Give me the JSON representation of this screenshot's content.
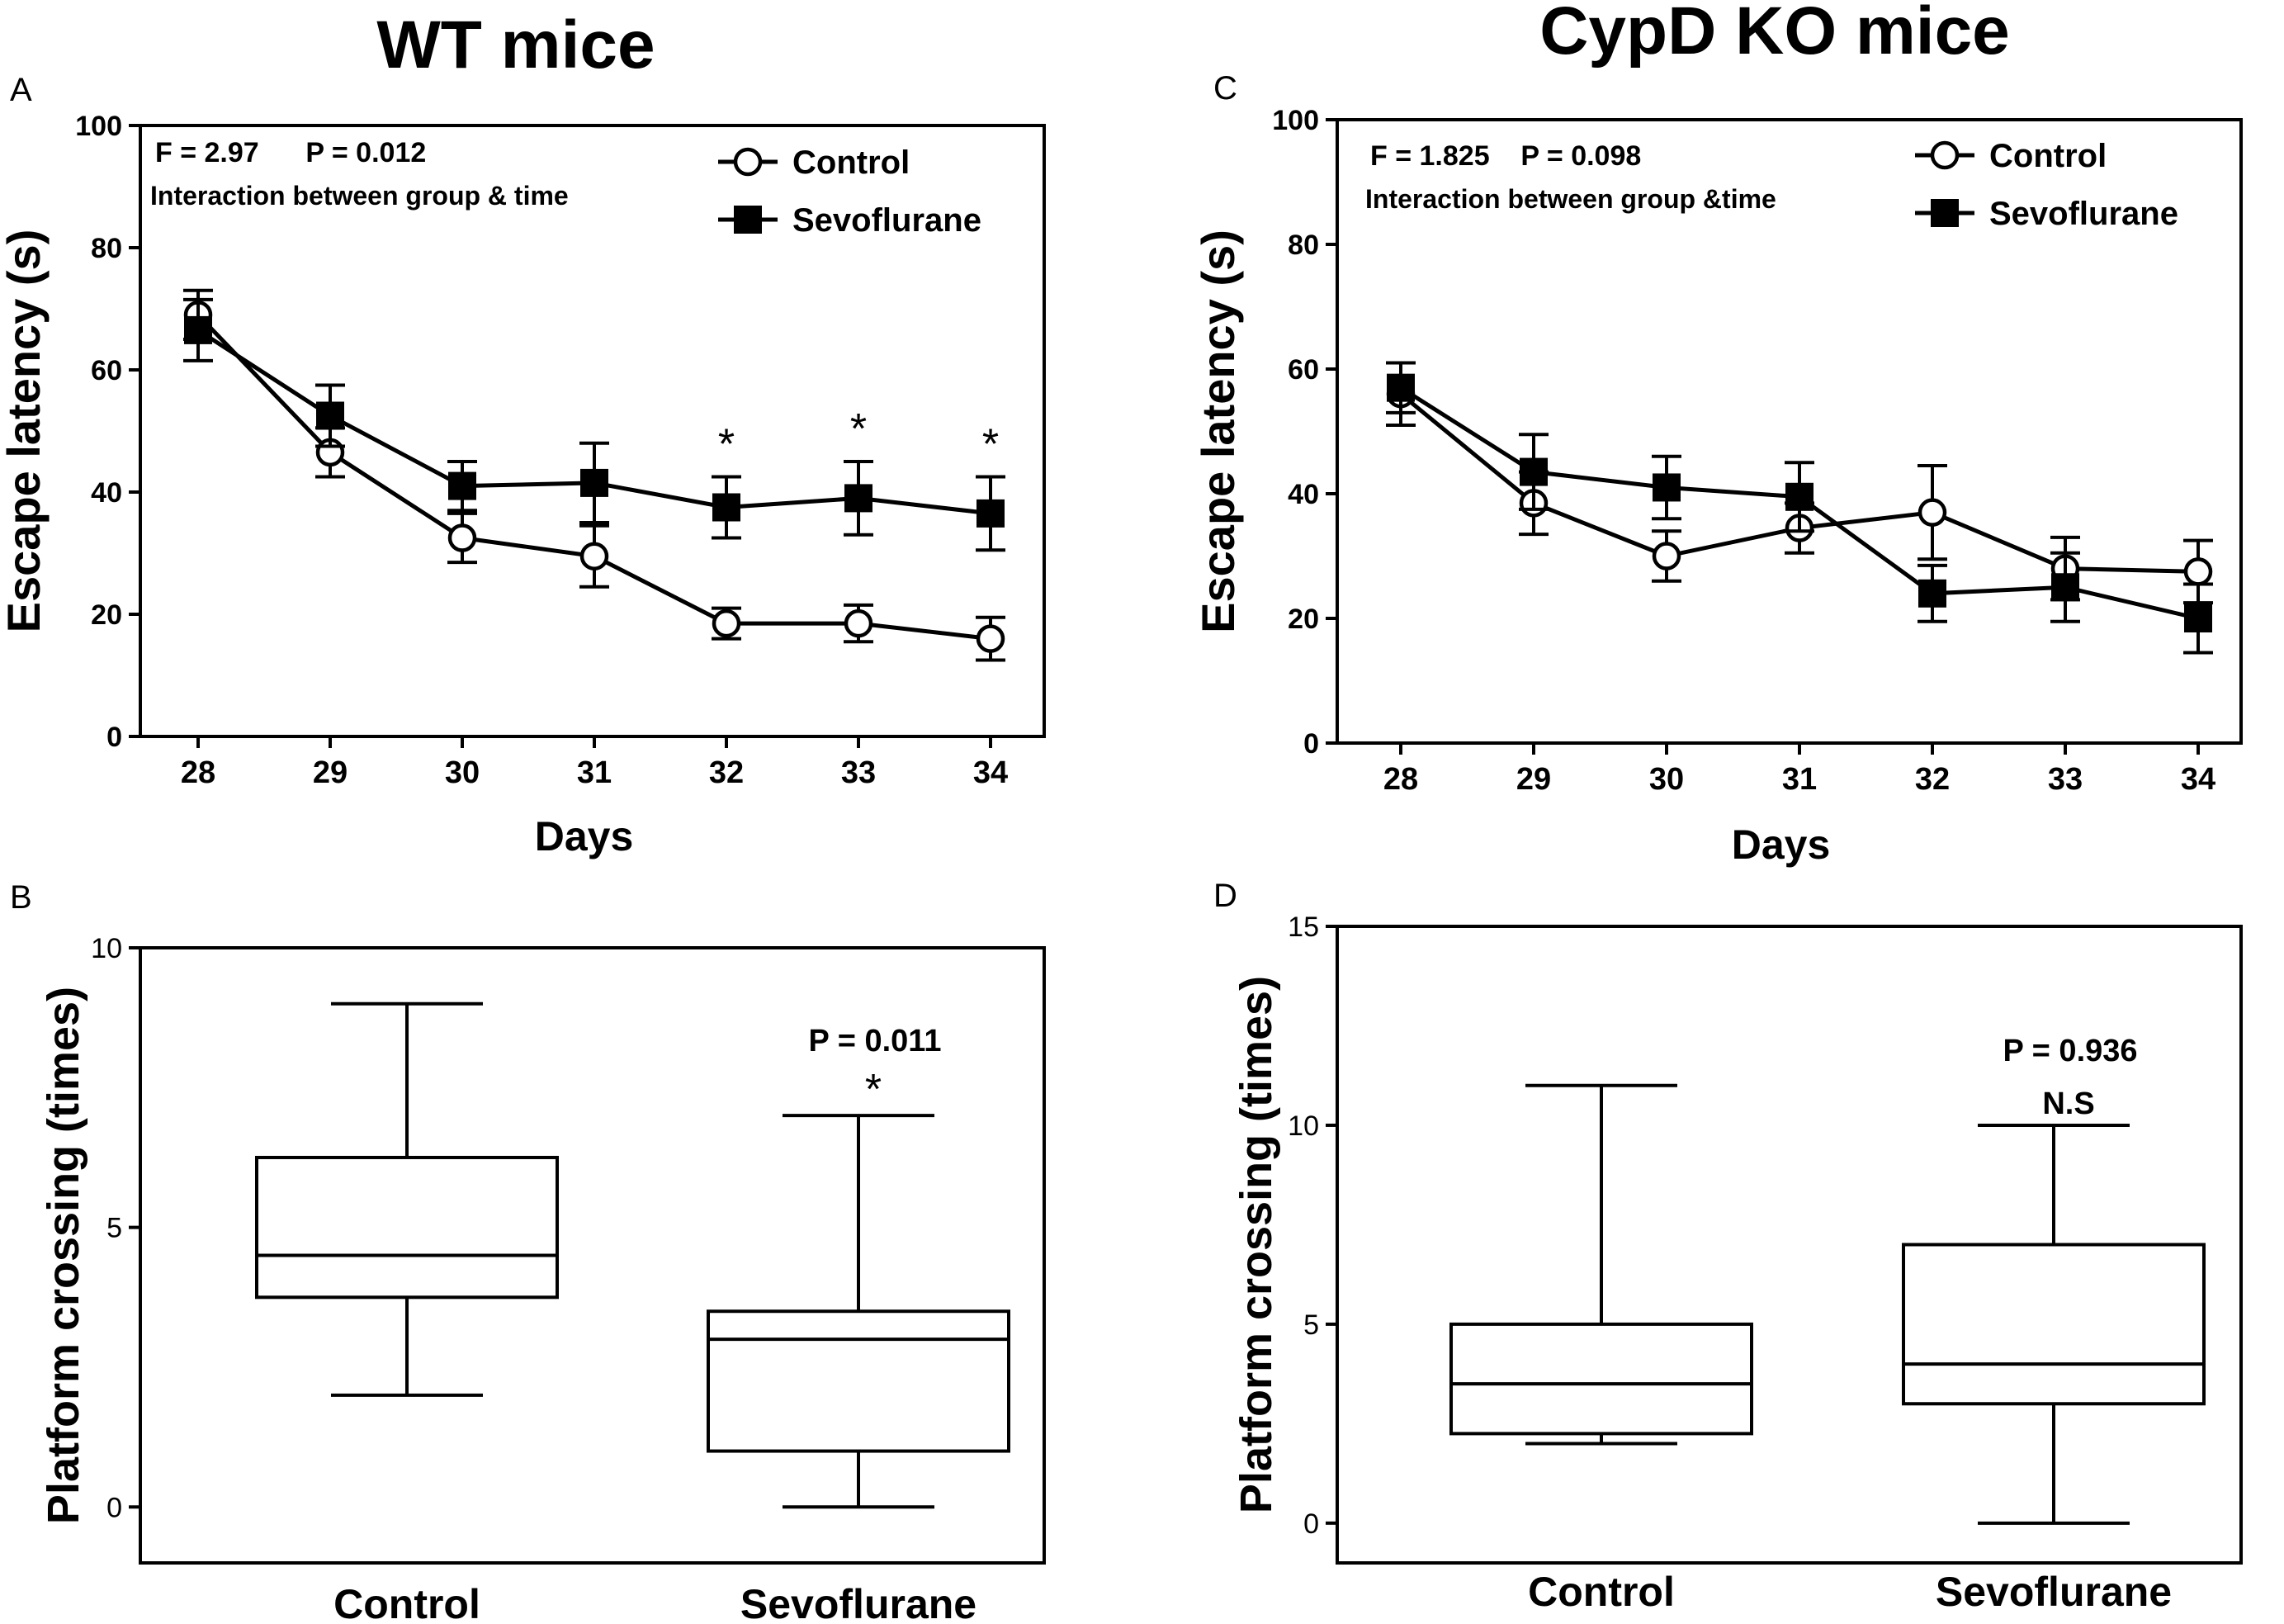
{
  "titles": {
    "left": "WT mice",
    "right": "CypD KO mice"
  },
  "chart_data": [
    {
      "panel": "A",
      "type": "line",
      "xlabel": "Days",
      "ylabel": "Escape latency (s)",
      "x": [
        28,
        29,
        30,
        31,
        32,
        33,
        34
      ],
      "ylim": [
        0,
        100
      ],
      "yticks": [
        0,
        20,
        40,
        60,
        80,
        100
      ],
      "stats_line1": "F = 2.97      P = 0.012",
      "stats_line2": "Interaction between group & time",
      "series": [
        {
          "name": "Control",
          "marker": "open-circle",
          "values": [
            69,
            46.5,
            32.5,
            29.5,
            18.5,
            18.5,
            16
          ],
          "errors": [
            4,
            4,
            4,
            5,
            2.5,
            3,
            3.5
          ]
        },
        {
          "name": "Sevoflurane",
          "marker": "filled-square",
          "values": [
            66.5,
            52.5,
            41,
            41.5,
            37.5,
            39,
            36.5
          ],
          "errors": [
            5,
            5,
            4,
            6.5,
            5,
            6,
            6
          ]
        }
      ],
      "annotations": [
        {
          "x": 32,
          "text": "*"
        },
        {
          "x": 33,
          "text": "*"
        },
        {
          "x": 34,
          "text": "*"
        }
      ]
    },
    {
      "panel": "B",
      "type": "box",
      "ylabel": "Platform crossing (times)",
      "categories": [
        "Control",
        "Sevoflurane"
      ],
      "ylim": [
        -1,
        10
      ],
      "yticks": [
        0,
        5,
        10
      ],
      "boxes": [
        {
          "name": "Control",
          "min": 2,
          "q1": 3.75,
          "median": 4.5,
          "q3": 6.25,
          "max": 9
        },
        {
          "name": "Sevoflurane",
          "min": 0,
          "q1": 1,
          "median": 3,
          "q3": 3.5,
          "max": 7
        }
      ],
      "p_text": "P = 0.011",
      "sig_text": "*"
    },
    {
      "panel": "C",
      "type": "line",
      "xlabel": "Days",
      "ylabel": "Escape latency (s)",
      "x": [
        28,
        29,
        30,
        31,
        32,
        33,
        34
      ],
      "ylim": [
        0,
        100
      ],
      "yticks": [
        0,
        20,
        40,
        60,
        80,
        100
      ],
      "stats_line1": "F = 1.825    P = 0.098",
      "stats_line2": "Interaction between group &time",
      "series": [
        {
          "name": "Control",
          "marker": "open-circle",
          "values": [
            56,
            38.5,
            30,
            34.5,
            37,
            28,
            27.5
          ],
          "errors": [
            5,
            5,
            4,
            4,
            7.5,
            5,
            5
          ]
        },
        {
          "name": "Sevoflurane",
          "marker": "filled-square",
          "values": [
            57,
            43.5,
            41,
            39.5,
            24,
            25,
            20
          ],
          "errors": [
            4,
            6,
            5,
            5.5,
            4.5,
            5.5,
            5.5
          ]
        }
      ]
    },
    {
      "panel": "D",
      "type": "box",
      "ylabel": "Platform crossing (times)",
      "categories": [
        "Control",
        "Sevoflurane"
      ],
      "ylim": [
        -1,
        15
      ],
      "yticks": [
        0,
        5,
        10,
        15
      ],
      "boxes": [
        {
          "name": "Control",
          "min": 2,
          "q1": 2.25,
          "median": 3.5,
          "q3": 5,
          "max": 11
        },
        {
          "name": "Sevoflurane",
          "min": 0,
          "q1": 3,
          "median": 4,
          "q3": 7,
          "max": 10
        }
      ],
      "p_text": "P = 0.936",
      "sig_text": "N.S"
    }
  ]
}
